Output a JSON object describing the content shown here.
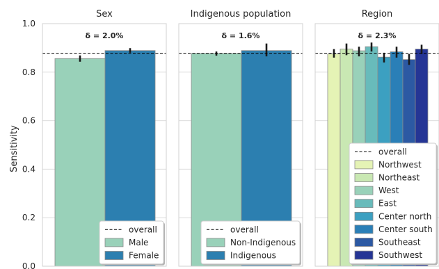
{
  "ylabel": "Sensitivity",
  "ylim": [
    0.0,
    1.0
  ],
  "yticks": [
    "0.0",
    "0.2",
    "0.4",
    "0.6",
    "0.8",
    "1.0"
  ],
  "overall_value": 0.878,
  "chart_data": [
    {
      "type": "bar",
      "title": "Sex",
      "delta_label": "δ = 2.0%",
      "categories": [
        "Male",
        "Female"
      ],
      "values": [
        0.856,
        0.889
      ],
      "error": [
        [
          0.843,
          0.869
        ],
        [
          0.88,
          0.899
        ]
      ],
      "colors": [
        "#99d1b9",
        "#2c7fb0"
      ],
      "legend_overall": "overall",
      "legend_placement": "lower-right",
      "ylim": [
        0.0,
        1.0
      ]
    },
    {
      "type": "bar",
      "title": "Indigenous population",
      "delta_label": "δ = 1.6%",
      "categories": [
        "Non-Indigenous",
        "Indigenous"
      ],
      "values": [
        0.877,
        0.889
      ],
      "error": [
        [
          0.868,
          0.885
        ],
        [
          0.865,
          0.918
        ]
      ],
      "colors": [
        "#99d1b9",
        "#2c7fb0"
      ],
      "legend_overall": "overall",
      "legend_placement": "lower-right",
      "ylim": [
        0.0,
        1.0
      ]
    },
    {
      "type": "bar",
      "title": "Region",
      "delta_label": "δ = 2.3%",
      "categories": [
        "Northwest",
        "Northeast",
        "West",
        "East",
        "Center north",
        "Center south",
        "Southeast",
        "Southwest"
      ],
      "values": [
        0.875,
        0.895,
        0.888,
        0.905,
        0.862,
        0.884,
        0.852,
        0.895
      ],
      "error": [
        [
          0.86,
          0.895
        ],
        [
          0.87,
          0.918
        ],
        [
          0.865,
          0.905
        ],
        [
          0.885,
          0.922
        ],
        [
          0.84,
          0.88
        ],
        [
          0.86,
          0.905
        ],
        [
          0.83,
          0.875
        ],
        [
          0.875,
          0.913
        ]
      ],
      "colors": [
        "#e5f3b5",
        "#c9e8b3",
        "#99d1b9",
        "#68bbbb",
        "#3ca0c1",
        "#2a7fb7",
        "#2c59a3",
        "#253595"
      ],
      "legend_overall": "overall",
      "legend_placement": "lower-right",
      "ylim": [
        0.0,
        1.0
      ]
    }
  ]
}
